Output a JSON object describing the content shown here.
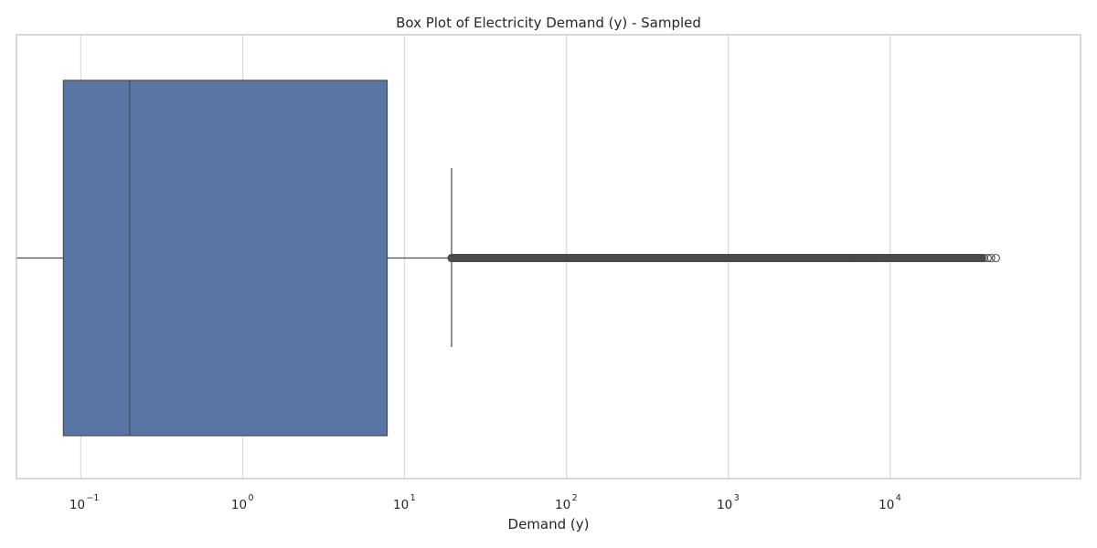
{
  "chart_data": {
    "type": "box",
    "title": "Box Plot of Electricity Demand (y) - Sampled",
    "xlabel": "Demand (y)",
    "ylabel": "",
    "xscale": "log",
    "xlim": [
      0.04,
      150000
    ],
    "grid": true,
    "orientation": "horizontal",
    "ticks": [
      {
        "value": 0.1,
        "base": "10",
        "exp": "−1"
      },
      {
        "value": 1,
        "base": "10",
        "exp": "0"
      },
      {
        "value": 10,
        "base": "10",
        "exp": "1"
      },
      {
        "value": 100,
        "base": "10",
        "exp": "2"
      },
      {
        "value": 1000,
        "base": "10",
        "exp": "3"
      },
      {
        "value": 10000,
        "base": "10",
        "exp": "4"
      }
    ],
    "box": {
      "whisker_low": 0.04,
      "q1": 0.078,
      "median": 0.2,
      "q3": 7.8,
      "whisker_high": 19.5,
      "outliers_range": [
        19.5,
        37000
      ],
      "outliers_extra": [
        38000,
        40000,
        42000,
        45000
      ]
    },
    "colors": {
      "box_fill": "#5875a4",
      "edge": "#4b4b4b",
      "grid": "#d9d9d9",
      "frame": "#cccccc"
    }
  }
}
